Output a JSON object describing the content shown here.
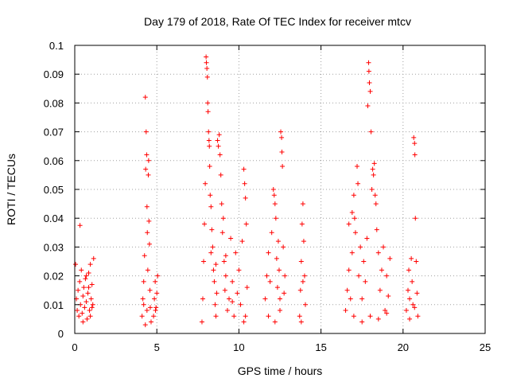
{
  "chart_data": {
    "type": "scatter",
    "title": "Day 179 of 2018, Rate Of TEC Index for receiver mtcv",
    "xlabel": "GPS time / hours",
    "ylabel": "ROTI / TECUs",
    "xlim": [
      0,
      25
    ],
    "ylim": [
      0,
      0.1
    ],
    "x_ticks": [
      0,
      5,
      10,
      15,
      20,
      25
    ],
    "x_tick_labels": [
      "0",
      "5",
      "10",
      "15",
      "20",
      "25"
    ],
    "y_ticks": [
      0,
      0.01,
      0.02,
      0.03,
      0.04,
      0.05,
      0.06,
      0.07,
      0.08,
      0.09,
      0.1
    ],
    "y_tick_labels": [
      "0",
      "0.01",
      "0.02",
      "0.03",
      "0.04",
      "0.05",
      "0.06",
      "0.07",
      "0.08",
      "0.09",
      "0.1"
    ],
    "grid": true,
    "marker": "plus",
    "color": "#ff0000",
    "series": [
      {
        "points": [
          [
            0.05,
            0.024
          ],
          [
            0.1,
            0.012
          ],
          [
            0.15,
            0.008
          ],
          [
            0.2,
            0.015
          ],
          [
            0.25,
            0.006
          ],
          [
            0.3,
            0.018
          ],
          [
            0.32,
            0.0375
          ],
          [
            0.35,
            0.01
          ],
          [
            0.4,
            0.022
          ],
          [
            0.45,
            0.007
          ],
          [
            0.5,
            0.013
          ],
          [
            0.55,
            0.016
          ],
          [
            0.6,
            0.009
          ],
          [
            0.65,
            0.019
          ],
          [
            0.7,
            0.011
          ],
          [
            0.75,
            0.005
          ],
          [
            0.8,
            0.014
          ],
          [
            0.85,
            0.021
          ],
          [
            0.9,
            0.008
          ],
          [
            0.95,
            0.024
          ],
          [
            1.0,
            0.012
          ],
          [
            1.05,
            0.017
          ],
          [
            1.1,
            0.01
          ],
          [
            1.15,
            0.026
          ],
          [
            0.7,
            0.02
          ],
          [
            0.85,
            0.016
          ],
          [
            0.95,
            0.006
          ],
          [
            1.05,
            0.009
          ],
          [
            0.5,
            0.004
          ],
          [
            4.1,
            0.006
          ],
          [
            4.15,
            0.012
          ],
          [
            4.2,
            0.018
          ],
          [
            4.25,
            0.027
          ],
          [
            4.3,
            0.082
          ],
          [
            4.32,
            0.057
          ],
          [
            4.35,
            0.07
          ],
          [
            4.38,
            0.062
          ],
          [
            4.4,
            0.044
          ],
          [
            4.42,
            0.035
          ],
          [
            4.45,
            0.022
          ],
          [
            4.48,
            0.055
          ],
          [
            4.5,
            0.06
          ],
          [
            4.52,
            0.039
          ],
          [
            4.55,
            0.031
          ],
          [
            4.58,
            0.015
          ],
          [
            4.6,
            0.009
          ],
          [
            4.65,
            0.004
          ],
          [
            4.3,
            0.003
          ],
          [
            4.2,
            0.01
          ],
          [
            4.4,
            0.008
          ],
          [
            4.8,
            0.006
          ],
          [
            4.85,
            0.012
          ],
          [
            4.9,
            0.018
          ],
          [
            4.95,
            0.009
          ],
          [
            5.0,
            0.014
          ],
          [
            5.05,
            0.02
          ],
          [
            4.92,
            0.008
          ],
          [
            7.75,
            0.004
          ],
          [
            7.8,
            0.012
          ],
          [
            7.85,
            0.025
          ],
          [
            7.9,
            0.038
          ],
          [
            7.95,
            0.052
          ],
          [
            8.0,
            0.096
          ],
          [
            8.02,
            0.094
          ],
          [
            8.05,
            0.092
          ],
          [
            8.08,
            0.089
          ],
          [
            8.1,
            0.08
          ],
          [
            8.12,
            0.077
          ],
          [
            8.15,
            0.07
          ],
          [
            8.18,
            0.067
          ],
          [
            8.2,
            0.065
          ],
          [
            8.22,
            0.058
          ],
          [
            8.25,
            0.048
          ],
          [
            8.3,
            0.044
          ],
          [
            8.35,
            0.036
          ],
          [
            8.4,
            0.03
          ],
          [
            8.45,
            0.022
          ],
          [
            8.5,
            0.018
          ],
          [
            8.55,
            0.01
          ],
          [
            8.6,
            0.006
          ],
          [
            8.65,
            0.014
          ],
          [
            8.7,
            0.067
          ],
          [
            8.75,
            0.065
          ],
          [
            8.8,
            0.069
          ],
          [
            8.85,
            0.062
          ],
          [
            8.9,
            0.055
          ],
          [
            8.95,
            0.045
          ],
          [
            9.0,
            0.035
          ],
          [
            9.05,
            0.04
          ],
          [
            9.1,
            0.025
          ],
          [
            9.15,
            0.015
          ],
          [
            9.2,
            0.02
          ],
          [
            9.3,
            0.008
          ],
          [
            9.4,
            0.012
          ],
          [
            9.5,
            0.033
          ],
          [
            9.6,
            0.018
          ],
          [
            9.7,
            0.006
          ],
          [
            9.8,
            0.028
          ],
          [
            9.9,
            0.014
          ],
          [
            10.0,
            0.022
          ],
          [
            10.1,
            0.01
          ],
          [
            10.2,
            0.032
          ],
          [
            10.3,
            0.057
          ],
          [
            10.35,
            0.052
          ],
          [
            10.4,
            0.047
          ],
          [
            10.45,
            0.038
          ],
          [
            10.5,
            0.016
          ],
          [
            10.4,
            0.006
          ],
          [
            10.3,
            0.004
          ],
          [
            8.3,
            0.028
          ],
          [
            8.6,
            0.024
          ],
          [
            9.2,
            0.027
          ],
          [
            9.6,
            0.011
          ],
          [
            11.6,
            0.012
          ],
          [
            11.7,
            0.02
          ],
          [
            11.8,
            0.028
          ],
          [
            11.9,
            0.018
          ],
          [
            12.0,
            0.035
          ],
          [
            12.1,
            0.05
          ],
          [
            12.15,
            0.048
          ],
          [
            12.2,
            0.045
          ],
          [
            12.25,
            0.04
          ],
          [
            12.3,
            0.026
          ],
          [
            12.35,
            0.016
          ],
          [
            12.4,
            0.032
          ],
          [
            12.45,
            0.022
          ],
          [
            12.5,
            0.008
          ],
          [
            12.55,
            0.07
          ],
          [
            12.6,
            0.068
          ],
          [
            12.62,
            0.063
          ],
          [
            12.65,
            0.058
          ],
          [
            12.7,
            0.03
          ],
          [
            12.75,
            0.014
          ],
          [
            12.8,
            0.02
          ],
          [
            11.8,
            0.006
          ],
          [
            12.2,
            0.004
          ],
          [
            12.5,
            0.012
          ],
          [
            13.7,
            0.006
          ],
          [
            13.75,
            0.015
          ],
          [
            13.8,
            0.025
          ],
          [
            13.85,
            0.038
          ],
          [
            13.9,
            0.045
          ],
          [
            13.95,
            0.032
          ],
          [
            14.0,
            0.02
          ],
          [
            14.05,
            0.01
          ],
          [
            13.8,
            0.004
          ],
          [
            13.9,
            0.018
          ],
          [
            16.5,
            0.008
          ],
          [
            16.6,
            0.015
          ],
          [
            16.7,
            0.022
          ],
          [
            16.8,
            0.012
          ],
          [
            16.9,
            0.028
          ],
          [
            17.0,
            0.048
          ],
          [
            17.05,
            0.04
          ],
          [
            17.1,
            0.035
          ],
          [
            17.2,
            0.058
          ],
          [
            17.25,
            0.052
          ],
          [
            17.3,
            0.02
          ],
          [
            17.4,
            0.03
          ],
          [
            17.5,
            0.012
          ],
          [
            17.6,
            0.025
          ],
          [
            17.7,
            0.018
          ],
          [
            17.8,
            0.033
          ],
          [
            17.85,
            0.079
          ],
          [
            17.9,
            0.094
          ],
          [
            17.92,
            0.091
          ],
          [
            17.95,
            0.087
          ],
          [
            18.0,
            0.084
          ],
          [
            18.05,
            0.07
          ],
          [
            18.1,
            0.05
          ],
          [
            18.15,
            0.057
          ],
          [
            18.2,
            0.055
          ],
          [
            18.25,
            0.059
          ],
          [
            18.3,
            0.048
          ],
          [
            18.35,
            0.045
          ],
          [
            18.4,
            0.036
          ],
          [
            18.5,
            0.028
          ],
          [
            18.6,
            0.015
          ],
          [
            18.7,
            0.022
          ],
          [
            18.8,
            0.03
          ],
          [
            18.9,
            0.008
          ],
          [
            19.0,
            0.02
          ],
          [
            19.1,
            0.013
          ],
          [
            19.2,
            0.026
          ],
          [
            17.0,
            0.006
          ],
          [
            17.5,
            0.004
          ],
          [
            18.0,
            0.006
          ],
          [
            18.5,
            0.005
          ],
          [
            19.0,
            0.007
          ],
          [
            16.7,
            0.038
          ],
          [
            16.9,
            0.042
          ],
          [
            20.2,
            0.008
          ],
          [
            20.3,
            0.015
          ],
          [
            20.35,
            0.022
          ],
          [
            20.4,
            0.012
          ],
          [
            20.5,
            0.026
          ],
          [
            20.55,
            0.018
          ],
          [
            20.6,
            0.01
          ],
          [
            20.65,
            0.068
          ],
          [
            20.7,
            0.066
          ],
          [
            20.72,
            0.062
          ],
          [
            20.75,
            0.04
          ],
          [
            20.8,
            0.025
          ],
          [
            20.85,
            0.014
          ],
          [
            20.9,
            0.006
          ],
          [
            20.4,
            0.005
          ],
          [
            20.7,
            0.009
          ]
        ]
      }
    ]
  }
}
